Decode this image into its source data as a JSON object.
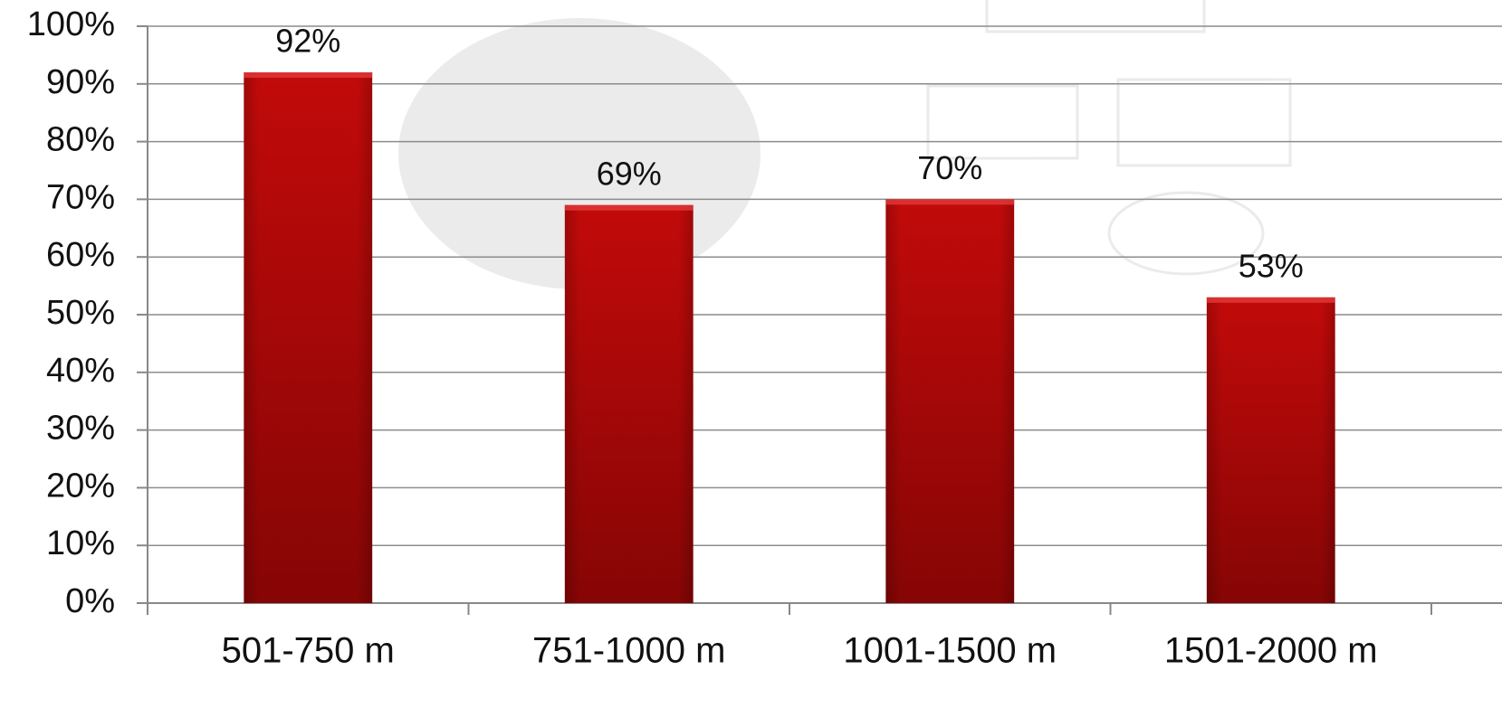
{
  "chart_data": {
    "type": "bar",
    "categories": [
      "501-750 m",
      "751-1000 m",
      "1001-1500 m",
      "1501-2000 m"
    ],
    "values": [
      92,
      69,
      70,
      53
    ],
    "value_labels": [
      "92%",
      "69%",
      "70%",
      "53%"
    ],
    "color": "#b00808",
    "ylim": [
      0,
      100
    ],
    "yticks": [
      {
        "value": 0,
        "label": "0%"
      },
      {
        "value": 10,
        "label": "10%"
      },
      {
        "value": 20,
        "label": "20%"
      },
      {
        "value": 30,
        "label": "30%"
      },
      {
        "value": 40,
        "label": "40%"
      },
      {
        "value": 50,
        "label": "50%"
      },
      {
        "value": 60,
        "label": "60%"
      },
      {
        "value": 70,
        "label": "70%"
      },
      {
        "value": 80,
        "label": "80%"
      },
      {
        "value": 90,
        "label": "90%"
      },
      {
        "value": 100,
        "label": "100%"
      }
    ],
    "grid": true
  }
}
